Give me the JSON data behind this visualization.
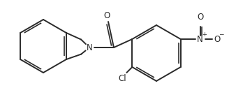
{
  "background_color": "#ffffff",
  "line_color": "#2a2a2a",
  "line_width": 1.4,
  "figsize": [
    3.38,
    1.36
  ],
  "dpi": 100,
  "xlim": [
    0,
    338
  ],
  "ylim": [
    0,
    136
  ]
}
